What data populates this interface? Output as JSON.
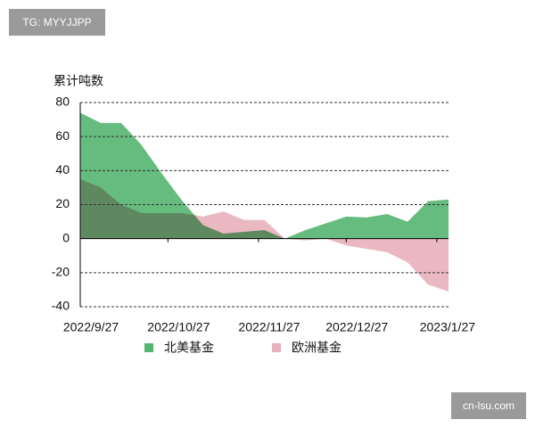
{
  "chart_data": {
    "type": "area",
    "y_label": "累计吨数",
    "x": [
      0,
      7,
      14,
      21,
      28,
      35,
      42,
      49,
      56,
      63,
      70,
      77,
      84,
      91,
      98,
      105,
      112,
      119,
      126
    ],
    "series": [
      {
        "name": "欧洲基金",
        "color": "#e8b0ba",
        "values": [
          35,
          30,
          20,
          15,
          15,
          15,
          13,
          16,
          11,
          11,
          0,
          -1,
          0,
          -4,
          -6,
          -8,
          -14,
          -27,
          -31
        ]
      },
      {
        "name": "北美基金",
        "color": "#55b571",
        "values": [
          74,
          68,
          68,
          55,
          38,
          22,
          8,
          3,
          4,
          5,
          0,
          5,
          9,
          13,
          12.5,
          14.5,
          10,
          22,
          23
        ]
      }
    ],
    "xlim": [
      0,
      126
    ],
    "xticks": [
      {
        "value": 0,
        "label": "2022/9/27"
      },
      {
        "value": 30,
        "label": "2022/10/27"
      },
      {
        "value": 61,
        "label": "2022/11/27"
      },
      {
        "value": 91,
        "label": "2022/12/27"
      },
      {
        "value": 122,
        "label": "2023/1/27"
      }
    ],
    "ylim": [
      -40,
      80
    ],
    "yticks": [
      -40,
      -20,
      0,
      20,
      40,
      60,
      80
    ],
    "grid": true,
    "legend": "bottom"
  },
  "watermarks": {
    "top": "TG: MYYJJPP",
    "bottom": "cn-lsu.com"
  }
}
